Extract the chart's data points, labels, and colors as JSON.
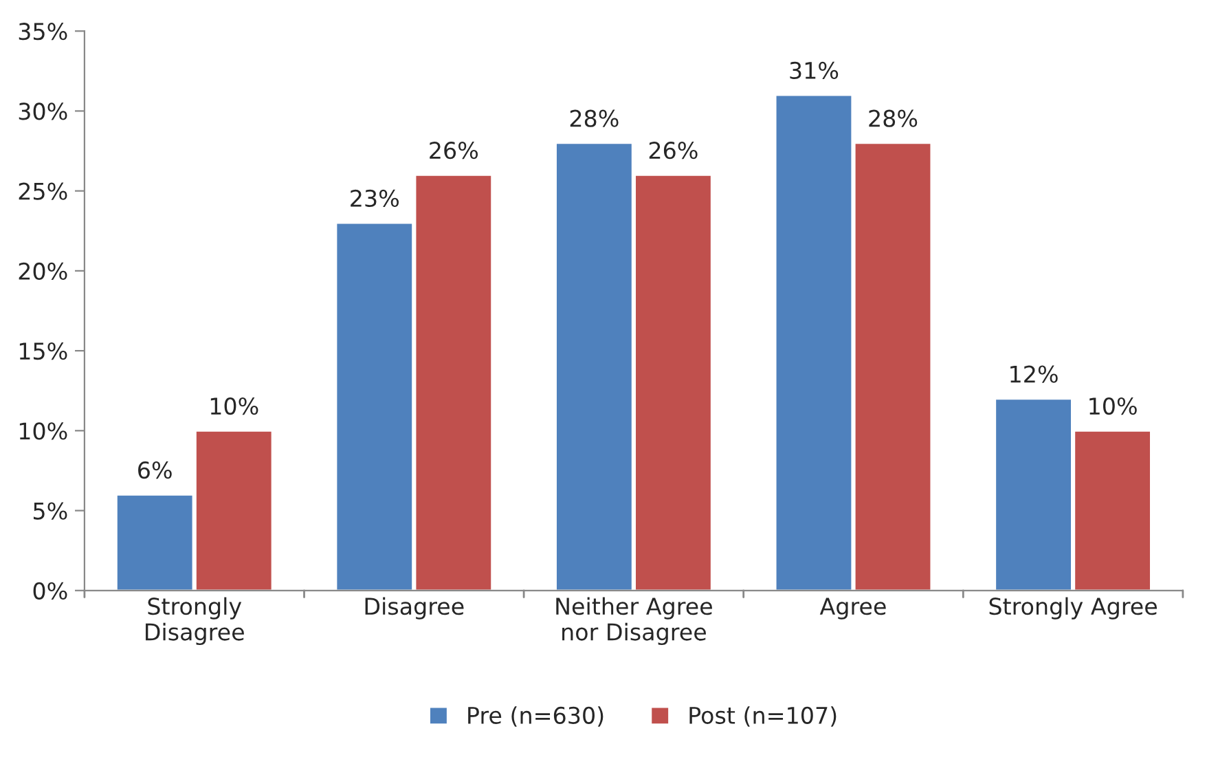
{
  "chart_data": {
    "type": "bar",
    "categories": [
      "Strongly\nDisagree",
      "Disagree",
      "Neither Agree\nnor Disagree",
      "Agree",
      "Strongly Agree"
    ],
    "series": [
      {
        "name": "Pre (n=630)",
        "color": "#4f81bd",
        "values": [
          6,
          23,
          28,
          31,
          12
        ],
        "value_labels": [
          "6%",
          "23%",
          "28%",
          "31%",
          "12%"
        ]
      },
      {
        "name": "Post (n=107)",
        "color": "#c0504d",
        "values": [
          10,
          26,
          26,
          28,
          10
        ],
        "value_labels": [
          "10%",
          "26%",
          "26%",
          "28%",
          "10%"
        ]
      }
    ],
    "ylim": [
      0,
      35
    ],
    "yticks": [
      {
        "value": 0,
        "label": "0%"
      },
      {
        "value": 5,
        "label": "5%"
      },
      {
        "value": 10,
        "label": "10%"
      },
      {
        "value": 15,
        "label": "15%"
      },
      {
        "value": 20,
        "label": "20%"
      },
      {
        "value": 25,
        "label": "25%"
      },
      {
        "value": 30,
        "label": "30%"
      },
      {
        "value": 35,
        "label": "35%"
      }
    ],
    "grid": false,
    "legend": "bottom"
  }
}
